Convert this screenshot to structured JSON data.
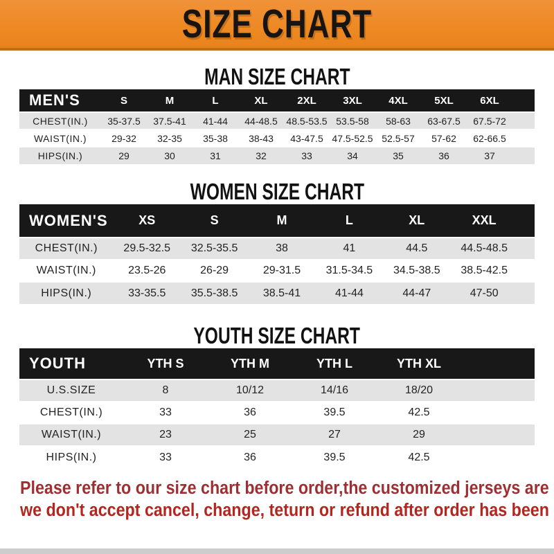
{
  "banner": {
    "title": "SIZE CHART",
    "bg_color": "#ee8a24",
    "title_color": "#171412"
  },
  "colors": {
    "header_row_bg": "#181818",
    "header_row_text": "#ffffff",
    "alt_row_bg": "#e3e3e3",
    "note_line1_color": "#9d2f32",
    "note_line2_color": "#b2261f"
  },
  "sections": [
    {
      "title": "MAN SIZE CHART",
      "corner_label": "MEN'S",
      "sizes": [
        "S",
        "M",
        "L",
        "XL",
        "2XL",
        "3XL",
        "4XL",
        "5XL",
        "6XL"
      ],
      "rows": [
        {
          "label": "CHEST(IN.)",
          "values": [
            "35-37.5",
            "37.5-41",
            "41-44",
            "44-48.5",
            "48.5-53.5",
            "53.5-58",
            "58-63",
            "63-67.5",
            "67.5-72"
          ]
        },
        {
          "label": "WAIST(IN.)",
          "values": [
            "29-32",
            "32-35",
            "35-38",
            "38-43",
            "43-47.5",
            "47.5-52.5",
            "52.5-57",
            "57-62",
            "62-66.5"
          ]
        },
        {
          "label": "HIPS(IN.)",
          "values": [
            "29",
            "30",
            "31",
            "32",
            "33",
            "34",
            "35",
            "36",
            "37"
          ]
        }
      ]
    },
    {
      "title": "WOMEN SIZE CHART",
      "corner_label": "WOMEN'S",
      "sizes": [
        "XS",
        "S",
        "M",
        "L",
        "XL",
        "XXL"
      ],
      "rows": [
        {
          "label": "CHEST(IN.)",
          "values": [
            "29.5-32.5",
            "32.5-35.5",
            "38",
            "41",
            "44.5",
            "44.5-48.5"
          ]
        },
        {
          "label": "WAIST(IN.)",
          "values": [
            "23.5-26",
            "26-29",
            "29-31.5",
            "31.5-34.5",
            "34.5-38.5",
            "38.5-42.5"
          ]
        },
        {
          "label": "HIPS(IN.)",
          "values": [
            "33-35.5",
            "35.5-38.5",
            "38.5-41",
            "41-44",
            "44-47",
            "47-50"
          ]
        }
      ]
    },
    {
      "title": "YOUTH SIZE CHART",
      "corner_label": "YOUTH",
      "sizes": [
        "YTH S",
        "YTH M",
        "YTH L",
        "YTH XL"
      ],
      "rows": [
        {
          "label": "U.S.SIZE",
          "values": [
            "8",
            "10/12",
            "14/16",
            "18/20"
          ]
        },
        {
          "label": "CHEST(IN.)",
          "values": [
            "33",
            "36",
            "39.5",
            "42.5"
          ]
        },
        {
          "label": "WAIST(IN.)",
          "values": [
            "23",
            "25",
            "27",
            "29"
          ]
        },
        {
          "label": "HIPS(IN.)",
          "values": [
            "33",
            "36",
            "39.5",
            "42.5"
          ]
        }
      ]
    }
  ],
  "note": {
    "line1": "Please refer to our size chart before order,the customized jerseys are special products,",
    "line2": "we don't accept cancel, change, teturn or refund after order has been placed!"
  }
}
